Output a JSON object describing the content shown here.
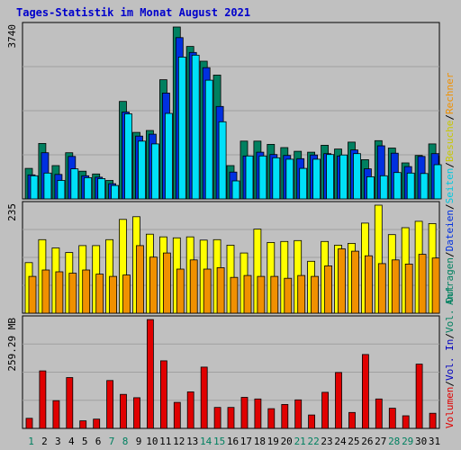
{
  "title": "Tages-Statistik im Monat August 2021",
  "colors": {
    "background": "#c0c0c0",
    "title": "#0000cc",
    "anfragen": "#008060",
    "dateien": "#0030e0",
    "seiten": "#00e0f8",
    "besuche": "#ffff00",
    "rechner": "#f09000",
    "volumen": "#e00000",
    "vol_in": "#0000c0",
    "vol_out": "#008060",
    "weekday_label": "#000000",
    "weekend_label": "#008060"
  },
  "right_labels": {
    "top": [
      {
        "text": "Anfragen",
        "color": "#008060"
      },
      {
        "text": "/",
        "color": "#000000"
      },
      {
        "text": "Dateien",
        "color": "#0030e0"
      },
      {
        "text": "/",
        "color": "#000000"
      },
      {
        "text": "Seiten",
        "color": "#00c8e0"
      },
      {
        "text": "/",
        "color": "#000000"
      },
      {
        "text": "Besuche",
        "color": "#c8c800"
      },
      {
        "text": "/",
        "color": "#000000"
      },
      {
        "text": "Rechner",
        "color": "#f09000"
      }
    ],
    "bottom": [
      {
        "text": "Volumen",
        "color": "#e00000"
      },
      {
        "text": "/",
        "color": "#000000"
      },
      {
        "text": "Vol. In",
        "color": "#0000c0"
      },
      {
        "text": "/",
        "color": "#000000"
      },
      {
        "text": "Vol. Out",
        "color": "#008060"
      }
    ]
  },
  "chart_data": {
    "type": "bar",
    "categories": [
      "1",
      "2",
      "3",
      "4",
      "5",
      "6",
      "7",
      "8",
      "9",
      "10",
      "11",
      "12",
      "13",
      "14",
      "15",
      "16",
      "17",
      "18",
      "19",
      "20",
      "21",
      "22",
      "23",
      "24",
      "25",
      "26",
      "27",
      "28",
      "29",
      "30",
      "31"
    ],
    "weekend_days": [
      "1",
      "7",
      "8",
      "14",
      "15",
      "21",
      "22",
      "28",
      "29"
    ],
    "panels": [
      {
        "id": "hits",
        "ylabel": "3740",
        "ymax": 3740,
        "series": [
          {
            "name": "Anfragen",
            "values": [
              660,
              1200,
              720,
              1000,
              600,
              540,
              400,
              2110,
              1440,
              1480,
              2580,
              3720,
              3300,
              2980,
              2680,
              720,
              1250,
              1250,
              1180,
              1110,
              1030,
              1010,
              1160,
              1080,
              1230,
              850,
              1260,
              1100,
              780,
              940,
              1190
            ]
          },
          {
            "name": "Dateien",
            "values": [
              520,
              1000,
              530,
              920,
              500,
              470,
              330,
              1880,
              1360,
              1400,
              2290,
              3490,
              3170,
              2840,
              2000,
              580,
              930,
              1010,
              960,
              940,
              870,
              950,
              980,
              930,
              1060,
              650,
              1150,
              990,
              700,
              920,
              980
            ]
          },
          {
            "name": "Seiten",
            "values": [
              500,
              560,
              400,
              650,
              460,
              440,
              290,
              1840,
              1250,
              1190,
              1850,
              3070,
              3110,
              2570,
              1670,
              390,
              930,
              930,
              890,
              860,
              660,
              860,
              960,
              950,
              980,
              480,
              500,
              570,
              560,
              550,
              740
            ]
          }
        ]
      },
      {
        "id": "visits",
        "ylabel": "235",
        "ymax": 235,
        "series": [
          {
            "name": "Besuche",
            "values": [
              110,
              160,
              142,
              132,
              147,
              147,
              160,
              204,
              210,
              172,
              166,
              164,
              166,
              159,
              160,
              148,
              131,
              183,
              154,
              156,
              158,
              113,
              156,
              148,
              152,
              196,
              235,
              171,
              186,
              200,
              195
            ]
          },
          {
            "name": "Rechner",
            "values": [
              80,
              94,
              90,
              87,
              94,
              85,
              80,
              83,
              147,
              122,
              131,
              96,
              116,
              96,
              99,
              78,
              82,
              80,
              80,
              76,
              82,
              80,
              103,
              140,
              135,
              125,
              108,
              116,
              107,
              128,
              120
            ]
          }
        ]
      },
      {
        "id": "volume",
        "ylabel": "259.29 MB",
        "ymax": 259.29,
        "series": [
          {
            "name": "Volumen",
            "values": [
              24,
              137,
              66,
              121,
              18,
              22,
              114,
              81,
              73,
              259,
              161,
              62,
              87,
              146,
              50,
              50,
              74,
              70,
              47,
              57,
              68,
              32,
              86,
              133,
              38,
              176,
              70,
              48,
              30,
              153,
              36
            ]
          }
        ]
      }
    ]
  }
}
